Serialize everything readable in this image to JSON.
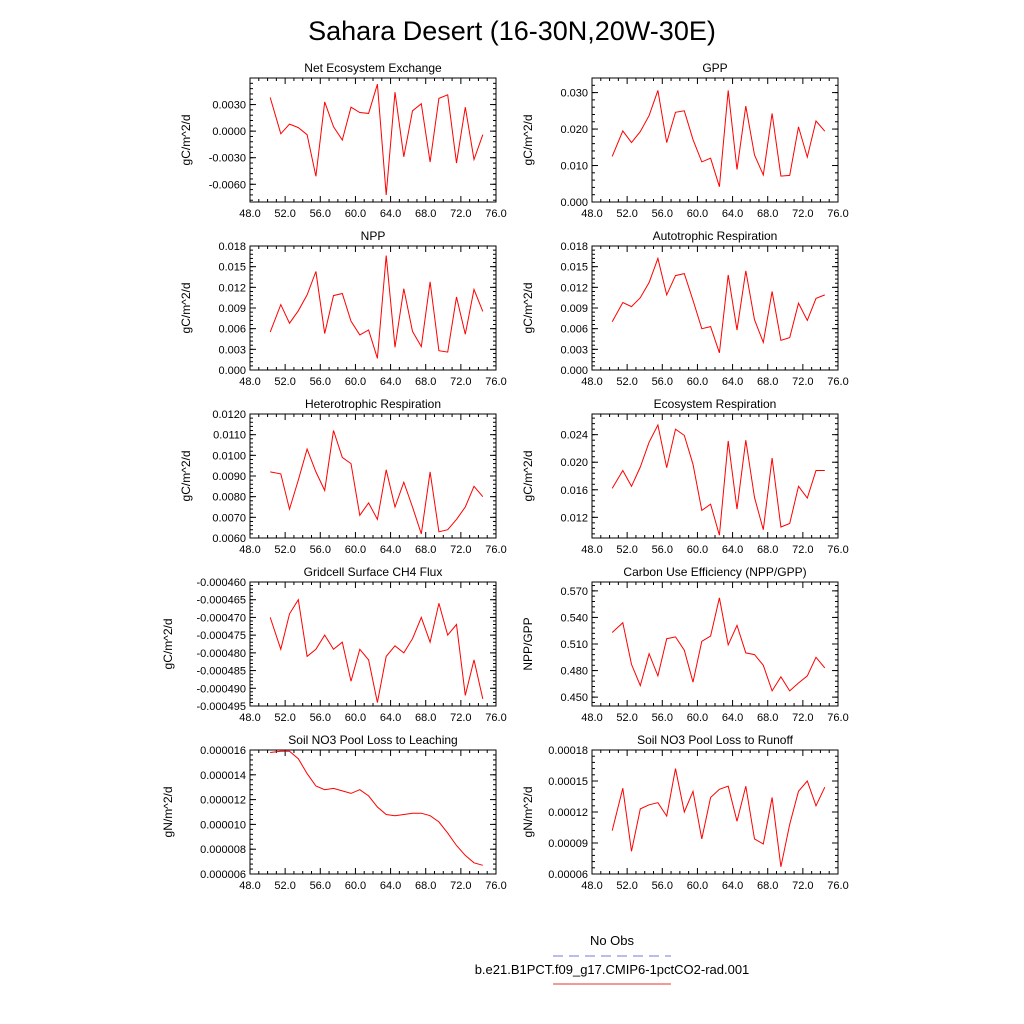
{
  "title": "Sahara Desert (16-30N,20W-30E)",
  "legend": {
    "entries": [
      {
        "label": "No Obs",
        "color": "#7a7ad6",
        "dash": true
      },
      {
        "label": "b.e21.B1PCT.f09_g17.CMIP6-1pctCO2-rad.001",
        "color": "#e8352e",
        "dash": false
      }
    ]
  },
  "line_color": "#ff0000",
  "chart_data": [
    {
      "type": "line",
      "title": "Net Ecosystem Exchange",
      "ylabel": "gC/m^2/d",
      "xlim": [
        48,
        76
      ],
      "xticks": [
        "48.0",
        "52.0",
        "56.0",
        "60.0",
        "64.0",
        "68.0",
        "72.0",
        "76.0"
      ],
      "ylim": [
        -0.008,
        0.006
      ],
      "yticks": [
        -0.006,
        -0.003,
        0.0,
        0.003
      ],
      "ytick_labels": [
        "-0.0060",
        "-0.0030",
        "0.0000",
        "0.0030"
      ],
      "x": [
        50.3,
        51.5,
        52.5,
        53.5,
        54.5,
        55.5,
        56.5,
        57.5,
        58.5,
        59.5,
        60.5,
        61.5,
        62.5,
        63.5,
        64.5,
        65.5,
        66.5,
        67.5,
        68.5,
        69.5,
        70.5,
        71.5,
        72.5,
        73.5,
        74.5
      ],
      "values": [
        0.0038,
        -0.0003,
        0.0008,
        0.0004,
        -0.0004,
        -0.0051,
        0.0033,
        0.0005,
        -0.001,
        0.0027,
        0.0021,
        0.002,
        0.0053,
        -0.0072,
        0.0044,
        -0.0029,
        0.0023,
        0.0031,
        -0.0035,
        0.0037,
        0.0041,
        -0.0036,
        0.0027,
        -0.0032,
        -0.0004
      ]
    },
    {
      "type": "line",
      "title": "GPP",
      "ylabel": "gC/m^2/d",
      "xlim": [
        48,
        76
      ],
      "xticks": [
        "48.0",
        "52.0",
        "56.0",
        "60.0",
        "64.0",
        "68.0",
        "72.0",
        "76.0"
      ],
      "ylim": [
        0.0,
        0.034
      ],
      "yticks": [
        0.0,
        0.01,
        0.02,
        0.03
      ],
      "ytick_labels": [
        "0.000",
        "0.010",
        "0.020",
        "0.030"
      ],
      "x": [
        50.3,
        51.5,
        52.5,
        53.5,
        54.5,
        55.5,
        56.5,
        57.5,
        58.5,
        59.5,
        60.5,
        61.5,
        62.5,
        63.5,
        64.5,
        65.5,
        66.5,
        67.5,
        68.5,
        69.5,
        70.5,
        71.5,
        72.5,
        73.5,
        74.5
      ],
      "values": [
        0.0125,
        0.0195,
        0.0163,
        0.0193,
        0.0237,
        0.0306,
        0.0163,
        0.0246,
        0.025,
        0.0171,
        0.011,
        0.012,
        0.0042,
        0.0306,
        0.0089,
        0.0263,
        0.0129,
        0.0074,
        0.0243,
        0.0071,
        0.0073,
        0.0206,
        0.0123,
        0.0222,
        0.0194
      ]
    },
    {
      "type": "line",
      "title": "NPP",
      "ylabel": "gC/m^2/d",
      "xlim": [
        48,
        76
      ],
      "xticks": [
        "48.0",
        "52.0",
        "56.0",
        "60.0",
        "64.0",
        "68.0",
        "72.0",
        "76.0"
      ],
      "ylim": [
        0.0,
        0.018
      ],
      "yticks": [
        0.0,
        0.003,
        0.006,
        0.009,
        0.012,
        0.015,
        0.018
      ],
      "ytick_labels": [
        "0.000",
        "0.003",
        "0.006",
        "0.009",
        "0.012",
        "0.015",
        "0.018"
      ],
      "x": [
        50.3,
        51.5,
        52.5,
        53.5,
        54.5,
        55.5,
        56.5,
        57.5,
        58.5,
        59.5,
        60.5,
        61.5,
        62.5,
        63.5,
        64.5,
        65.5,
        66.5,
        67.5,
        68.5,
        69.5,
        70.5,
        71.5,
        72.5,
        73.5,
        74.5
      ],
      "values": [
        0.0055,
        0.0095,
        0.0068,
        0.0086,
        0.0109,
        0.0143,
        0.0053,
        0.0108,
        0.0111,
        0.0071,
        0.0051,
        0.0058,
        0.0017,
        0.0166,
        0.0033,
        0.0118,
        0.0056,
        0.0034,
        0.0128,
        0.0028,
        0.0026,
        0.0106,
        0.0052,
        0.0117,
        0.0085
      ]
    },
    {
      "type": "line",
      "title": "Autotrophic Respiration",
      "ylabel": "gC/m^2/d",
      "xlim": [
        48,
        76
      ],
      "xticks": [
        "48.0",
        "52.0",
        "56.0",
        "60.0",
        "64.0",
        "68.0",
        "72.0",
        "76.0"
      ],
      "ylim": [
        0.0,
        0.018
      ],
      "yticks": [
        0.0,
        0.003,
        0.006,
        0.009,
        0.012,
        0.015,
        0.018
      ],
      "ytick_labels": [
        "0.000",
        "0.003",
        "0.006",
        "0.009",
        "0.012",
        "0.015",
        "0.018"
      ],
      "x": [
        50.3,
        51.5,
        52.5,
        53.5,
        54.5,
        55.5,
        56.5,
        57.5,
        58.5,
        59.5,
        60.5,
        61.5,
        62.5,
        63.5,
        64.5,
        65.5,
        66.5,
        67.5,
        68.5,
        69.5,
        70.5,
        71.5,
        72.5,
        73.5,
        74.5
      ],
      "values": [
        0.007,
        0.0098,
        0.0092,
        0.0105,
        0.0127,
        0.0162,
        0.0109,
        0.0137,
        0.014,
        0.0101,
        0.006,
        0.0063,
        0.0025,
        0.0138,
        0.0058,
        0.0144,
        0.0073,
        0.004,
        0.0114,
        0.0043,
        0.0047,
        0.0097,
        0.0072,
        0.0104,
        0.0109
      ]
    },
    {
      "type": "line",
      "title": "Heterotrophic Respiration",
      "ylabel": "gC/m^2/d",
      "xlim": [
        48,
        76
      ],
      "xticks": [
        "48.0",
        "52.0",
        "56.0",
        "60.0",
        "64.0",
        "68.0",
        "72.0",
        "76.0"
      ],
      "ylim": [
        0.006,
        0.012
      ],
      "yticks": [
        0.006,
        0.007,
        0.008,
        0.009,
        0.01,
        0.011,
        0.012
      ],
      "ytick_labels": [
        "0.0060",
        "0.0070",
        "0.0080",
        "0.0090",
        "0.0100",
        "0.0110",
        "0.0120"
      ],
      "x": [
        50.3,
        51.5,
        52.5,
        53.5,
        54.5,
        55.5,
        56.5,
        57.5,
        58.5,
        59.5,
        60.5,
        61.5,
        62.5,
        63.5,
        64.5,
        65.5,
        66.5,
        67.5,
        68.5,
        69.5,
        70.5,
        71.5,
        72.5,
        73.5,
        74.5
      ],
      "values": [
        0.0092,
        0.0091,
        0.0074,
        0.0088,
        0.0103,
        0.0092,
        0.0083,
        0.0112,
        0.0099,
        0.0096,
        0.0071,
        0.0077,
        0.0069,
        0.0093,
        0.0075,
        0.0087,
        0.0075,
        0.0062,
        0.0092,
        0.0063,
        0.0064,
        0.0069,
        0.0075,
        0.0085,
        0.008
      ]
    },
    {
      "type": "line",
      "title": "Ecosystem Respiration",
      "ylabel": "gC/m^2/d",
      "xlim": [
        48,
        76
      ],
      "xticks": [
        "48.0",
        "52.0",
        "56.0",
        "60.0",
        "64.0",
        "68.0",
        "72.0",
        "76.0"
      ],
      "ylim": [
        0.009,
        0.027
      ],
      "yticks": [
        0.012,
        0.016,
        0.02,
        0.024
      ],
      "ytick_labels": [
        "0.012",
        "0.016",
        "0.020",
        "0.024"
      ],
      "x": [
        50.3,
        51.5,
        52.5,
        53.5,
        54.5,
        55.5,
        56.5,
        57.5,
        58.5,
        59.5,
        60.5,
        61.5,
        62.5,
        63.5,
        64.5,
        65.5,
        66.5,
        67.5,
        68.5,
        69.5,
        70.5,
        71.5,
        72.5,
        73.5,
        74.5
      ],
      "values": [
        0.0162,
        0.0188,
        0.0165,
        0.0193,
        0.0229,
        0.0254,
        0.0192,
        0.0248,
        0.0239,
        0.0197,
        0.013,
        0.0139,
        0.0094,
        0.0231,
        0.0132,
        0.0232,
        0.0149,
        0.0102,
        0.0206,
        0.0106,
        0.0111,
        0.0165,
        0.0148,
        0.0188,
        0.0188
      ]
    },
    {
      "type": "line",
      "title": "Gridcell Surface CH4 Flux",
      "ylabel": "gC/m^2/d",
      "xlim": [
        48,
        76
      ],
      "xticks": [
        "48.0",
        "52.0",
        "56.0",
        "60.0",
        "64.0",
        "68.0",
        "72.0",
        "76.0"
      ],
      "ylim": [
        -0.000495,
        -0.00046
      ],
      "yticks": [
        -0.000495,
        -0.00049,
        -0.000485,
        -0.00048,
        -0.000475,
        -0.00047,
        -0.000465,
        -0.00046
      ],
      "ytick_labels": [
        "-0.000495",
        "-0.000490",
        "-0.000485",
        "-0.000480",
        "-0.000475",
        "-0.000470",
        "-0.000465",
        "-0.000460"
      ],
      "x": [
        50.3,
        51.5,
        52.5,
        53.5,
        54.5,
        55.5,
        56.5,
        57.5,
        58.5,
        59.5,
        60.5,
        61.5,
        62.5,
        63.5,
        64.5,
        65.5,
        66.5,
        67.5,
        68.5,
        69.5,
        70.5,
        71.5,
        72.5,
        73.5,
        74.5
      ],
      "values": [
        -0.00047,
        -0.000479,
        -0.000469,
        -0.000465,
        -0.000481,
        -0.000479,
        -0.000475,
        -0.000479,
        -0.000477,
        -0.000488,
        -0.000479,
        -0.000482,
        -0.000494,
        -0.000481,
        -0.000478,
        -0.00048,
        -0.000476,
        -0.00047,
        -0.000477,
        -0.000466,
        -0.000475,
        -0.000472,
        -0.000492,
        -0.000482,
        -0.000493
      ]
    },
    {
      "type": "line",
      "title": "Carbon Use Efficiency (NPP/GPP)",
      "ylabel": "NPP/GPP",
      "xlim": [
        48,
        76
      ],
      "xticks": [
        "48.0",
        "52.0",
        "56.0",
        "60.0",
        "64.0",
        "68.0",
        "72.0",
        "76.0"
      ],
      "ylim": [
        0.44,
        0.58
      ],
      "yticks": [
        0.45,
        0.48,
        0.51,
        0.54,
        0.57
      ],
      "ytick_labels": [
        "0.450",
        "0.480",
        "0.510",
        "0.540",
        "0.570"
      ],
      "x": [
        50.3,
        51.5,
        52.5,
        53.5,
        54.5,
        55.5,
        56.5,
        57.5,
        58.5,
        59.5,
        60.5,
        61.5,
        62.5,
        63.5,
        64.5,
        65.5,
        66.5,
        67.5,
        68.5,
        69.5,
        70.5,
        71.5,
        72.5,
        73.5,
        74.5
      ],
      "values": [
        0.523,
        0.534,
        0.487,
        0.463,
        0.499,
        0.474,
        0.516,
        0.518,
        0.503,
        0.467,
        0.513,
        0.519,
        0.562,
        0.509,
        0.531,
        0.5,
        0.498,
        0.486,
        0.457,
        0.473,
        0.457,
        0.466,
        0.474,
        0.495,
        0.483
      ]
    },
    {
      "type": "line",
      "title": "Soil NO3 Pool Loss to Leaching",
      "ylabel": "gN/m^2/d",
      "xlim": [
        48,
        76
      ],
      "xticks": [
        "48.0",
        "52.0",
        "56.0",
        "60.0",
        "64.0",
        "68.0",
        "72.0",
        "76.0"
      ],
      "ylim": [
        6e-06,
        1.6e-05
      ],
      "yticks": [
        6e-06,
        8e-06,
        1e-05,
        1.2e-05,
        1.4e-05,
        1.6e-05
      ],
      "ytick_labels": [
        "0.000006",
        "0.000008",
        "0.000010",
        "0.000012",
        "0.000014",
        "0.000016"
      ],
      "x": [
        50.3,
        51.5,
        52.5,
        53.5,
        54.5,
        55.5,
        56.5,
        57.5,
        58.5,
        59.5,
        60.5,
        61.5,
        62.5,
        63.5,
        64.5,
        65.5,
        66.5,
        67.5,
        68.5,
        69.5,
        70.5,
        71.5,
        72.5,
        73.5,
        74.5
      ],
      "values": [
        1.58e-05,
        1.59e-05,
        1.59e-05,
        1.53e-05,
        1.41e-05,
        1.31e-05,
        1.28e-05,
        1.29e-05,
        1.27e-05,
        1.25e-05,
        1.28e-05,
        1.23e-05,
        1.14e-05,
        1.08e-05,
        1.07e-05,
        1.08e-05,
        1.09e-05,
        1.09e-05,
        1.07e-05,
        1.02e-05,
        9.3e-06,
        8.3e-06,
        7.5e-06,
        6.9e-06,
        6.7e-06
      ]
    },
    {
      "type": "line",
      "title": "Soil NO3 Pool Loss to Runoff",
      "ylabel": "gN/m^2/d",
      "xlim": [
        48,
        76
      ],
      "xticks": [
        "48.0",
        "52.0",
        "56.0",
        "60.0",
        "64.0",
        "68.0",
        "72.0",
        "76.0"
      ],
      "ylim": [
        6e-05,
        0.00018
      ],
      "yticks": [
        6e-05,
        9e-05,
        0.00012,
        0.00015,
        0.00018
      ],
      "ytick_labels": [
        "0.00006",
        "0.00009",
        "0.00012",
        "0.00015",
        "0.00018"
      ],
      "x": [
        50.3,
        51.5,
        52.5,
        53.5,
        54.5,
        55.5,
        56.5,
        57.5,
        58.5,
        59.5,
        60.5,
        61.5,
        62.5,
        63.5,
        64.5,
        65.5,
        66.5,
        67.5,
        68.5,
        69.5,
        70.5,
        71.5,
        72.5,
        73.5,
        74.5
      ],
      "values": [
        0.000102,
        0.000143,
        8.2e-05,
        0.000123,
        0.000127,
        0.000129,
        0.000116,
        0.000162,
        0.00012,
        0.00014,
        9.4e-05,
        0.000134,
        0.000142,
        0.000145,
        0.000111,
        0.000145,
        9.4e-05,
        8.9e-05,
        0.000134,
        6.7e-05,
        0.000108,
        0.00014,
        0.00015,
        0.000126,
        0.000144
      ]
    }
  ]
}
